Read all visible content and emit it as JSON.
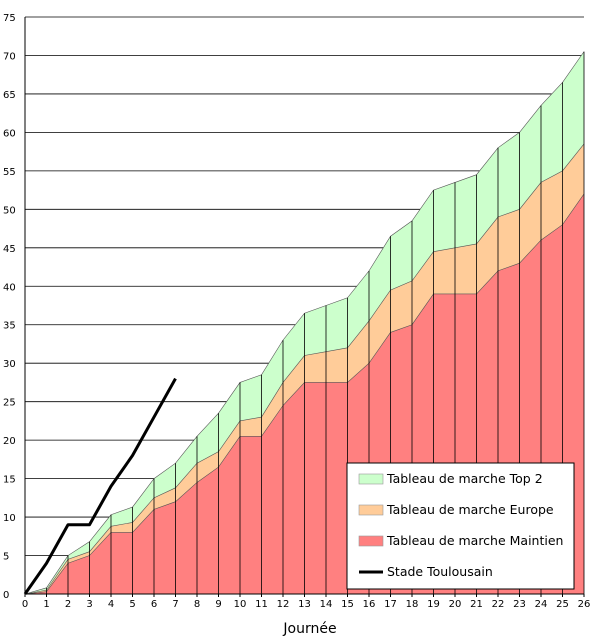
{
  "chart_data": {
    "type": "area",
    "title": "",
    "xlabel": "Journée",
    "ylabel": "",
    "x": [
      0,
      1,
      2,
      3,
      4,
      5,
      6,
      7,
      8,
      9,
      10,
      11,
      12,
      13,
      14,
      15,
      16,
      17,
      18,
      19,
      20,
      21,
      22,
      23,
      24,
      25,
      26
    ],
    "xlim": [
      0,
      26
    ],
    "ylim": [
      0,
      75
    ],
    "yticks": [
      0,
      5,
      10,
      15,
      20,
      25,
      30,
      35,
      40,
      45,
      50,
      55,
      60,
      65,
      70,
      75
    ],
    "grid": "horizontal",
    "legend_position": "bottom-right",
    "series": [
      {
        "name": "Tableau de marche Maintien",
        "kind": "area",
        "color": "#ff8080",
        "values": [
          0,
          0.3,
          4,
          5,
          8,
          8,
          11,
          12,
          14.5,
          16.5,
          20.5,
          20.5,
          24.5,
          27.5,
          27.5,
          27.5,
          30,
          34,
          35,
          39,
          39,
          39,
          42,
          43,
          46,
          48,
          52
        ]
      },
      {
        "name": "Tableau de marche Europe",
        "kind": "area",
        "color": "#ffcc99",
        "values": [
          0,
          0.5,
          4.5,
          5.5,
          8.8,
          9.3,
          12.5,
          13.8,
          17,
          18.5,
          22.5,
          23,
          27.5,
          31,
          31.5,
          32,
          35.5,
          39.5,
          40.7,
          44.5,
          45,
          45.5,
          49,
          50,
          53.5,
          55,
          58.5
        ]
      },
      {
        "name": "Tableau de marche Top 2",
        "kind": "area",
        "color": "#ccffcc",
        "values": [
          0,
          0.8,
          5,
          6.8,
          10.3,
          11.3,
          15,
          17,
          20.5,
          23.5,
          27.5,
          28.5,
          33,
          36.5,
          37.5,
          38.5,
          42,
          46.5,
          48.5,
          52.5,
          53.5,
          54.5,
          58,
          60,
          63.5,
          66.5,
          70.5
        ]
      },
      {
        "name": "Stade Toulousain",
        "kind": "line",
        "color": "#000000",
        "x": [
          0,
          1,
          2,
          3,
          4,
          5,
          6,
          7
        ],
        "values": [
          0,
          4,
          9,
          9,
          14,
          18,
          23,
          28
        ]
      }
    ]
  }
}
